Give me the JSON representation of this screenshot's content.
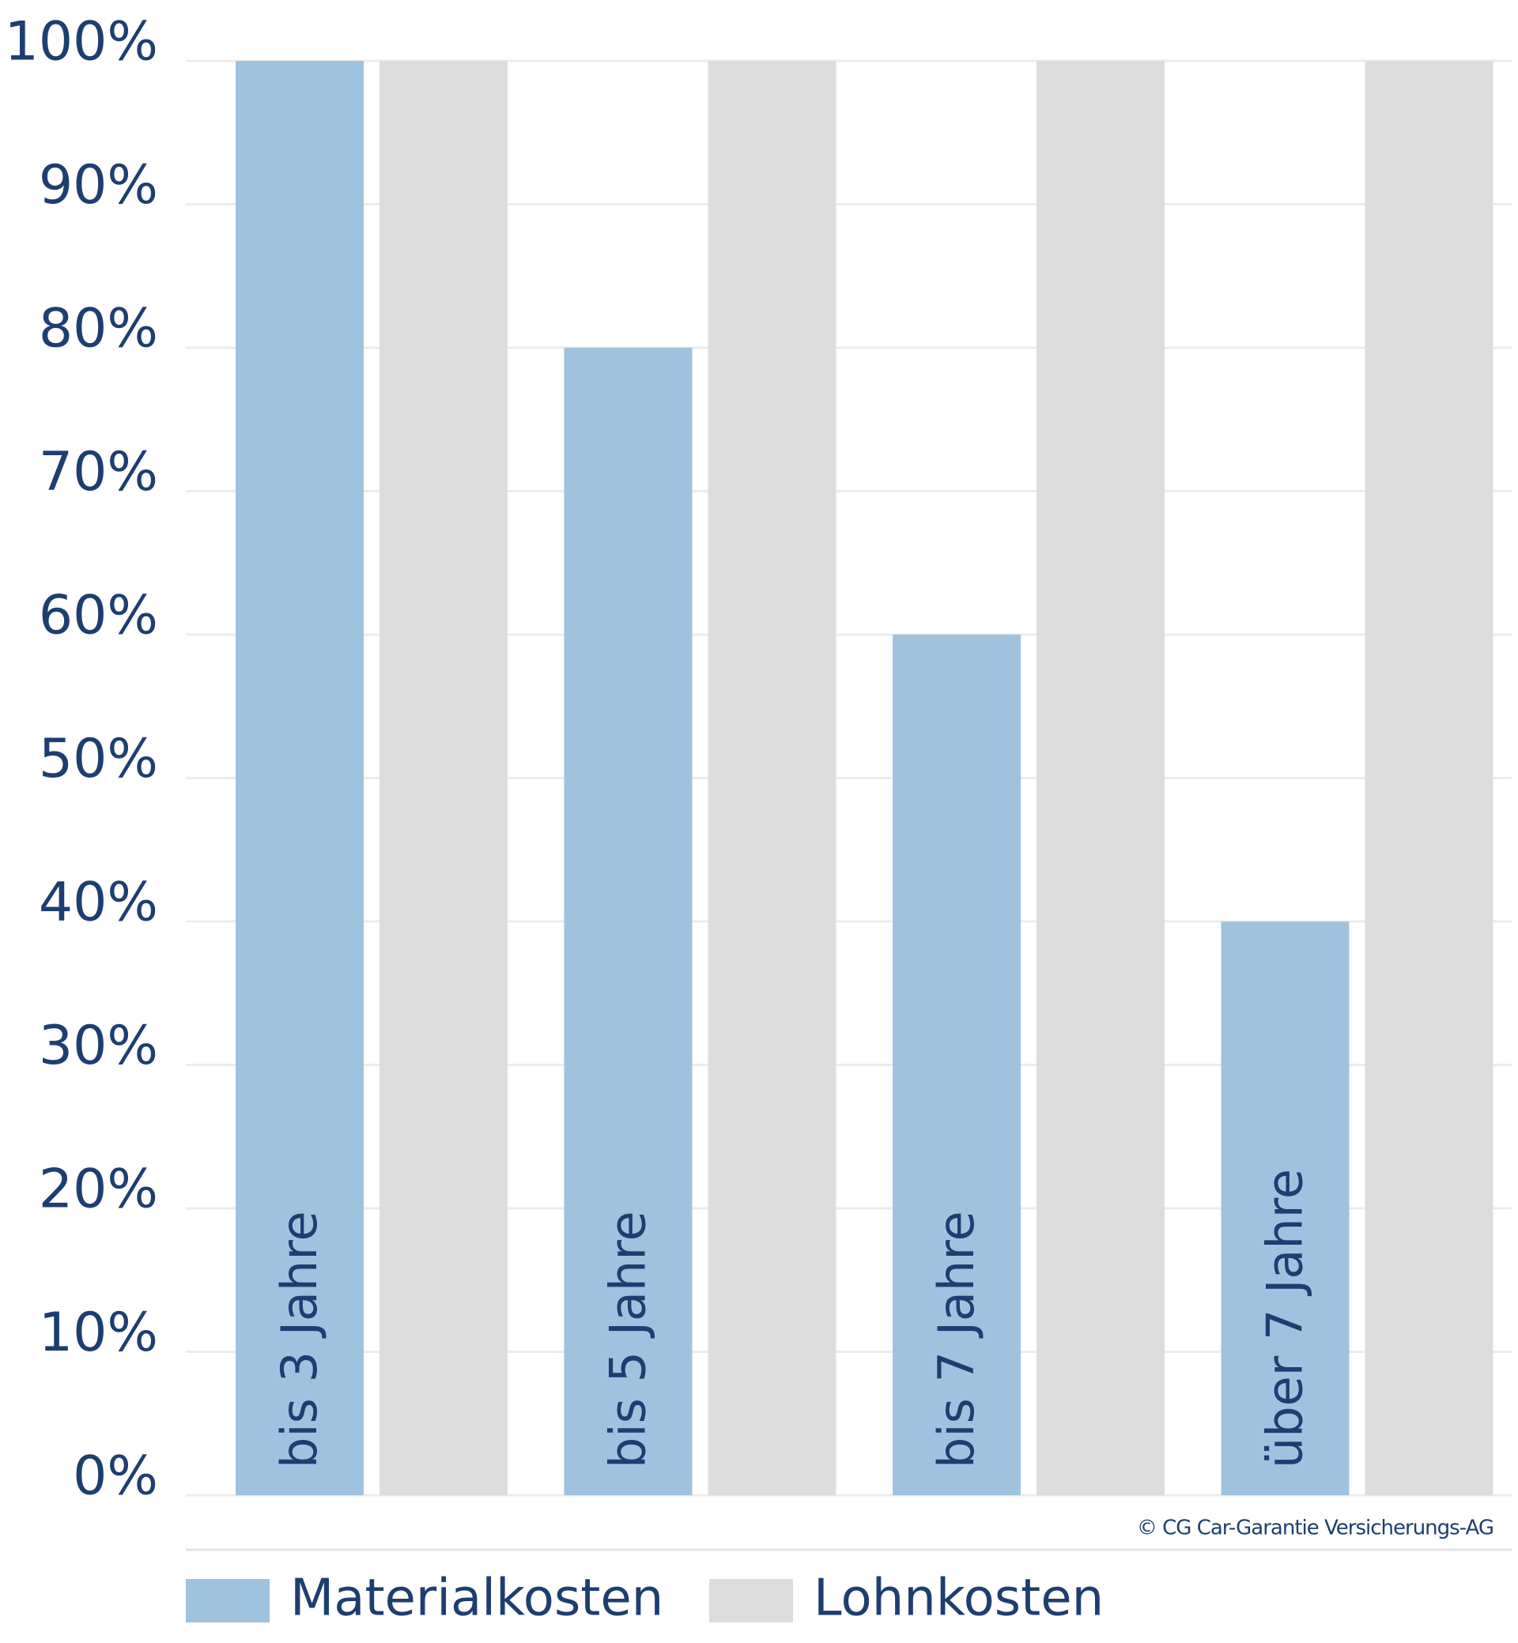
{
  "chart_data": {
    "type": "bar",
    "categories": [
      "bis 3 Jahre",
      "bis 5 Jahre",
      "bis 7 Jahre",
      "über 7 Jahre"
    ],
    "series": [
      {
        "name": "Materialkosten",
        "color": "#9fc3de",
        "values": [
          100,
          80,
          60,
          40
        ]
      },
      {
        "name": "Lohnkosten",
        "color": "#dddddd",
        "values": [
          100,
          100,
          100,
          100
        ]
      }
    ],
    "ylim": [
      0,
      100
    ],
    "yticks": [
      {
        "value": 0,
        "label": "0%"
      },
      {
        "value": 10,
        "label": "10%"
      },
      {
        "value": 20,
        "label": "20%"
      },
      {
        "value": 30,
        "label": "30%"
      },
      {
        "value": 40,
        "label": "40%"
      },
      {
        "value": 50,
        "label": "50%"
      },
      {
        "value": 60,
        "label": "60%"
      },
      {
        "value": 70,
        "label": "70%"
      },
      {
        "value": 80,
        "label": "80%"
      },
      {
        "value": 90,
        "label": "90%"
      },
      {
        "value": 100,
        "label": "100%"
      }
    ],
    "grid": true,
    "source": "© CG Car-Garantie Versicherungs-AG"
  }
}
